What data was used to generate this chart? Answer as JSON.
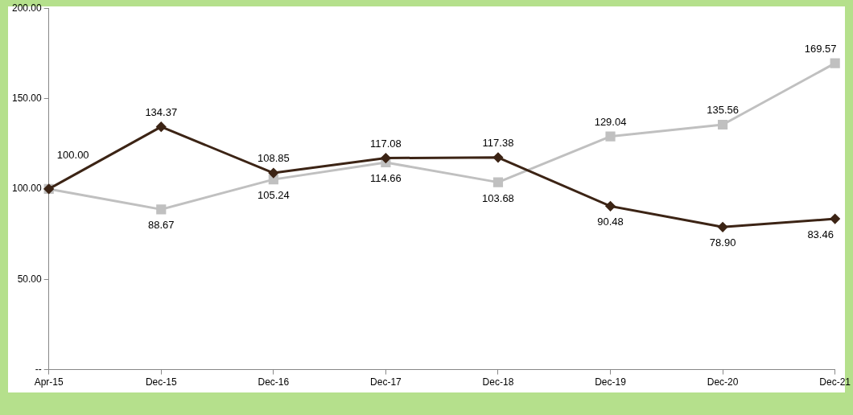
{
  "chart_data": {
    "type": "line",
    "categories": [
      "Apr-15",
      "Dec-15",
      "Dec-16",
      "Dec-17",
      "Dec-18",
      "Dec-19",
      "Dec-20",
      "Dec-21"
    ],
    "series": [
      {
        "color": "#3c2415",
        "marker": "diamond",
        "values": [
          100.0,
          134.37,
          108.85,
          117.08,
          117.38,
          90.48,
          78.9,
          83.46
        ],
        "value_labels": [
          "100.00",
          "134.37",
          "108.85",
          "117.08",
          "117.38",
          "90.48",
          "78.90",
          "83.46"
        ]
      },
      {
        "color": "#c0c0c0",
        "marker": "square",
        "values": [
          100.0,
          88.67,
          105.24,
          114.66,
          103.68,
          129.04,
          135.56,
          169.57
        ],
        "value_labels": [
          null,
          "88.67",
          "105.24",
          "114.66",
          "103.68",
          "129.04",
          "135.56",
          "169.57"
        ]
      }
    ],
    "ylim": [
      0,
      200
    ],
    "yticks": [
      {
        "value": 0,
        "label": "--"
      },
      {
        "value": 50,
        "label": "50.00"
      },
      {
        "value": 100,
        "label": "100.00"
      },
      {
        "value": 150,
        "label": "150.00"
      },
      {
        "value": 200,
        "label": "200.00"
      }
    ],
    "grid": false,
    "legend": false,
    "line_style": "solid"
  }
}
